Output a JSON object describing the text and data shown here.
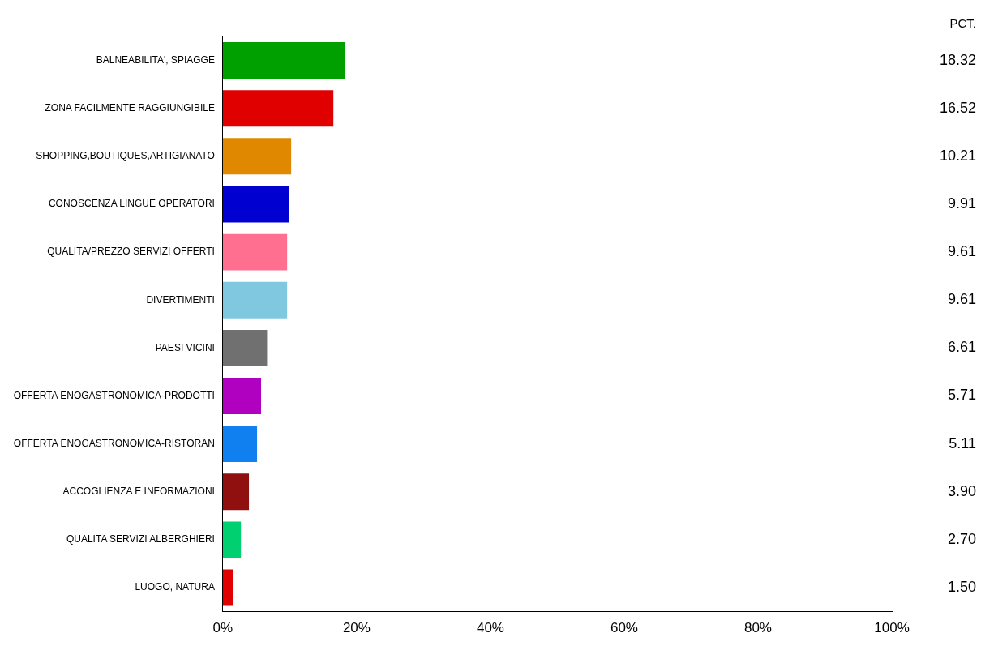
{
  "chart_data": {
    "type": "bar",
    "orientation": "horizontal",
    "categories": [
      "BALNEABILITA', SPIAGGE",
      "ZONA FACILMENTE RAGGIUNGIBILE",
      "SHOPPING,BOUTIQUES,ARTIGIANATO",
      "CONOSCENZA LINGUE OPERATORI",
      "QUALITA/PREZZO SERVIZI OFFERTI",
      "DIVERTIMENTI",
      "PAESI VICINI",
      "OFFERTA ENOGASTRONOMICA-PRODOTTI",
      "OFFERTA ENOGASTRONOMICA-RISTORAN",
      "ACCOGLIENZA E INFORMAZIONI",
      "QUALITA SERVIZI ALBERGHIERI",
      "LUOGO, NATURA"
    ],
    "values": [
      18.32,
      16.52,
      10.21,
      9.91,
      9.61,
      9.61,
      6.61,
      5.71,
      5.11,
      3.9,
      2.7,
      1.5
    ],
    "value_labels": [
      "18.32",
      "16.52",
      "10.21",
      "9.91",
      "9.61",
      "9.61",
      "6.61",
      "5.71",
      "5.11",
      "3.90",
      "2.70",
      "1.50"
    ],
    "colors": [
      "#00a000",
      "#e00000",
      "#e08800",
      "#0000d0",
      "#ff7090",
      "#80c8e0",
      "#707070",
      "#b000c0",
      "#1080f0",
      "#901010",
      "#00d070",
      "#e00000"
    ],
    "annotations": [
      "PCT."
    ],
    "xlim": [
      0,
      100
    ],
    "xticks": [
      {
        "value": 0,
        "label": "0%"
      },
      {
        "value": 20,
        "label": "20%"
      },
      {
        "value": 40,
        "label": "40%"
      },
      {
        "value": 60,
        "label": "60%"
      },
      {
        "value": 80,
        "label": "80%"
      },
      {
        "value": 100,
        "label": "100%"
      }
    ],
    "grid": false,
    "legend": false
  }
}
